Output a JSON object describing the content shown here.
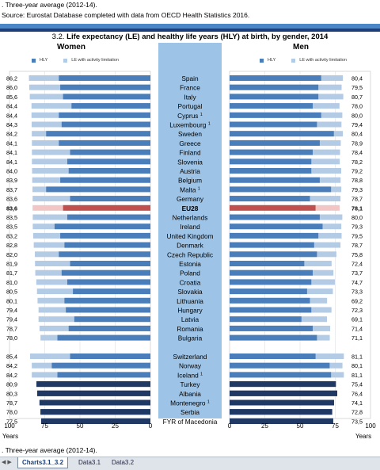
{
  "notes": {
    "top_note": ". Three-year average (2012-14).",
    "source": "Source: Eurostat Database completed with data from OECD Health Statistics 2016.",
    "bottom_note": ". Three-year average (2012-14)."
  },
  "colors": {
    "hly": "#4a7ebb",
    "le": "#b4cbe6",
    "eu_hly": "#c0504d",
    "eu_le": "#f2c6c5",
    "nonmember_hly": "#1f3864",
    "nonmember_le": "#1f3864",
    "middle_band": "#9dc3e6"
  },
  "sheet_tabs": [
    {
      "label": "Charts3.1_3.2",
      "active": true
    },
    {
      "label": "Data3.1",
      "active": false
    },
    {
      "label": "Data3.2",
      "active": false
    }
  ],
  "chart_data": {
    "type": "bar",
    "title_number": "3.2.",
    "title": "Life expectancy (LE) and healthy life years (HLY) at birth, by gender, 2014",
    "women_title": "Women",
    "men_title": "Men",
    "legend": {
      "hly": "HLY",
      "le": "LE with activity limitation"
    },
    "axis_ticks_women": [
      "100",
      "75",
      "50",
      "25",
      "0"
    ],
    "axis_ticks_men": [
      "0",
      "25",
      "50",
      "75",
      "100"
    ],
    "axis_unit": "Years",
    "xlim": [
      0,
      100
    ],
    "countries": [
      {
        "name": "Spain",
        "sup": "",
        "women_le": "86,2",
        "men_le": "80,4",
        "w": 86.2,
        "w_hly": 65,
        "m": 80.4,
        "m_hly": 65,
        "group": "eu"
      },
      {
        "name": "France",
        "sup": "",
        "women_le": "86,0",
        "men_le": "79,5",
        "w": 86.0,
        "w_hly": 64,
        "m": 79.5,
        "m_hly": 63,
        "group": "eu"
      },
      {
        "name": "Italy",
        "sup": "",
        "women_le": "85,6",
        "men_le": "80,7",
        "w": 85.6,
        "w_hly": 62,
        "m": 80.7,
        "m_hly": 63,
        "group": "eu"
      },
      {
        "name": "Portugal",
        "sup": "",
        "women_le": "84,4",
        "men_le": "78,0",
        "w": 84.4,
        "w_hly": 56,
        "m": 78.0,
        "m_hly": 59,
        "group": "eu"
      },
      {
        "name": "Cyprus",
        "sup": "1",
        "women_le": "84,4",
        "men_le": "80,0",
        "w": 84.4,
        "w_hly": 65,
        "m": 80.0,
        "m_hly": 65,
        "group": "eu"
      },
      {
        "name": "Luxembourg",
        "sup": "1",
        "women_le": "84,3",
        "men_le": "79,4",
        "w": 84.3,
        "w_hly": 63,
        "m": 79.4,
        "m_hly": 62,
        "group": "eu"
      },
      {
        "name": "Sweden",
        "sup": "",
        "women_le": "84,2",
        "men_le": "80,4",
        "w": 84.2,
        "w_hly": 74,
        "m": 80.4,
        "m_hly": 74,
        "group": "eu"
      },
      {
        "name": "Greece",
        "sup": "",
        "women_le": "84,1",
        "men_le": "78,9",
        "w": 84.1,
        "w_hly": 65,
        "m": 78.9,
        "m_hly": 64,
        "group": "eu"
      },
      {
        "name": "Finland",
        "sup": "",
        "women_le": "84,1",
        "men_le": "78,4",
        "w": 84.1,
        "w_hly": 57,
        "m": 78.4,
        "m_hly": 59,
        "group": "eu"
      },
      {
        "name": "Slovenia",
        "sup": "",
        "women_le": "84,1",
        "men_le": "78,2",
        "w": 84.1,
        "w_hly": 59,
        "m": 78.2,
        "m_hly": 58,
        "group": "eu"
      },
      {
        "name": "Austria",
        "sup": "",
        "women_le": "84,0",
        "men_le": "79,2",
        "w": 84.0,
        "w_hly": 58,
        "m": 79.2,
        "m_hly": 58,
        "group": "eu"
      },
      {
        "name": "Belgium",
        "sup": "",
        "women_le": "83,9",
        "men_le": "78,8",
        "w": 83.9,
        "w_hly": 64,
        "m": 78.8,
        "m_hly": 64,
        "group": "eu"
      },
      {
        "name": "Malta",
        "sup": "1",
        "women_le": "83,7",
        "men_le": "79,3",
        "w": 83.7,
        "w_hly": 74,
        "m": 79.3,
        "m_hly": 72,
        "group": "eu"
      },
      {
        "name": "Germany",
        "sup": "",
        "women_le": "83,6",
        "men_le": "78,7",
        "w": 83.6,
        "w_hly": 57,
        "m": 78.7,
        "m_hly": 57,
        "group": "eu"
      },
      {
        "name": "EU28",
        "sup": "",
        "women_le": "83,6",
        "men_le": "78,1",
        "w": 83.6,
        "w_hly": 62,
        "m": 78.1,
        "m_hly": 61,
        "group": "eu28"
      },
      {
        "name": "Netherlands",
        "sup": "",
        "women_le": "83,5",
        "men_le": "80,0",
        "w": 83.5,
        "w_hly": 59,
        "m": 80.0,
        "m_hly": 64,
        "group": "eu"
      },
      {
        "name": "Ireland",
        "sup": "",
        "women_le": "83,5",
        "men_le": "79,3",
        "w": 83.5,
        "w_hly": 68,
        "m": 79.3,
        "m_hly": 66,
        "group": "eu"
      },
      {
        "name": "United Kingdom",
        "sup": "",
        "women_le": "83,2",
        "men_le": "79,5",
        "w": 83.2,
        "w_hly": 64,
        "m": 79.5,
        "m_hly": 63,
        "group": "eu"
      },
      {
        "name": "Denmark",
        "sup": "",
        "women_le": "82,8",
        "men_le": "78,7",
        "w": 82.8,
        "w_hly": 61,
        "m": 78.7,
        "m_hly": 60,
        "group": "eu"
      },
      {
        "name": "Czech Republic",
        "sup": "",
        "women_le": "82,0",
        "men_le": "75,8",
        "w": 82.0,
        "w_hly": 65,
        "m": 75.8,
        "m_hly": 62,
        "group": "eu"
      },
      {
        "name": "Estonia",
        "sup": "",
        "women_le": "81,9",
        "men_le": "72,4",
        "w": 81.9,
        "w_hly": 57,
        "m": 72.4,
        "m_hly": 53,
        "group": "eu"
      },
      {
        "name": "Poland",
        "sup": "",
        "women_le": "81,7",
        "men_le": "73,7",
        "w": 81.7,
        "w_hly": 63,
        "m": 73.7,
        "m_hly": 59,
        "group": "eu"
      },
      {
        "name": "Croatia",
        "sup": "",
        "women_le": "81,0",
        "men_le": "74,7",
        "w": 81.0,
        "w_hly": 59,
        "m": 74.7,
        "m_hly": 58,
        "group": "eu"
      },
      {
        "name": "Slovakia",
        "sup": "",
        "women_le": "80,5",
        "men_le": "73,3",
        "w": 80.5,
        "w_hly": 55,
        "m": 73.3,
        "m_hly": 55,
        "group": "eu"
      },
      {
        "name": "Lithuania",
        "sup": "",
        "women_le": "80,1",
        "men_le": "69,2",
        "w": 80.1,
        "w_hly": 61,
        "m": 69.2,
        "m_hly": 57,
        "group": "eu"
      },
      {
        "name": "Hungary",
        "sup": "",
        "women_le": "79,4",
        "men_le": "72,3",
        "w": 79.4,
        "w_hly": 60,
        "m": 72.3,
        "m_hly": 58,
        "group": "eu"
      },
      {
        "name": "Latvia",
        "sup": "",
        "women_le": "79,4",
        "men_le": "69,1",
        "w": 79.4,
        "w_hly": 54,
        "m": 69.1,
        "m_hly": 51,
        "group": "eu"
      },
      {
        "name": "Romania",
        "sup": "",
        "women_le": "78,7",
        "men_le": "71,4",
        "w": 78.7,
        "w_hly": 58,
        "m": 71.4,
        "m_hly": 59,
        "group": "eu"
      },
      {
        "name": "Bulgaria",
        "sup": "",
        "women_le": "78,0",
        "men_le": "71,1",
        "w": 78.0,
        "w_hly": 66,
        "m": 71.1,
        "m_hly": 62,
        "group": "eu"
      },
      {
        "name": "",
        "sup": "",
        "women_le": "",
        "men_le": "",
        "w": null,
        "w_hly": null,
        "m": null,
        "m_hly": null,
        "group": "gap"
      },
      {
        "name": "Switzerland",
        "sup": "",
        "women_le": "85,4",
        "men_le": "81,1",
        "w": 85.4,
        "w_hly": 57,
        "m": 81.1,
        "m_hly": 61,
        "group": "eu"
      },
      {
        "name": "Norway",
        "sup": "",
        "women_le": "84,2",
        "men_le": "80,1",
        "w": 84.2,
        "w_hly": 70,
        "m": 80.1,
        "m_hly": 71,
        "group": "eu"
      },
      {
        "name": "Iceland",
        "sup": "1",
        "women_le": "84,2",
        "men_le": "81,1",
        "w": 84.2,
        "w_hly": 66,
        "m": 81.1,
        "m_hly": 72,
        "group": "eu"
      },
      {
        "name": "Turkey",
        "sup": "",
        "women_le": "80,9",
        "men_le": "75,4",
        "w": 80.9,
        "w_hly": 80.9,
        "m": 75.4,
        "m_hly": 75.4,
        "group": "nonmember"
      },
      {
        "name": "Albania",
        "sup": "",
        "women_le": "80,3",
        "men_le": "76,4",
        "w": 80.3,
        "w_hly": 80.3,
        "m": 76.4,
        "m_hly": 76.4,
        "group": "nonmember"
      },
      {
        "name": "Montenegro",
        "sup": "1",
        "women_le": "78,7",
        "men_le": "74,1",
        "w": 78.7,
        "w_hly": 78.7,
        "m": 74.1,
        "m_hly": 74.1,
        "group": "nonmember"
      },
      {
        "name": "Serbia",
        "sup": "",
        "women_le": "78,0",
        "men_le": "72,8",
        "w": 78.0,
        "w_hly": 78.0,
        "m": 72.8,
        "m_hly": 72.8,
        "group": "nonmember"
      },
      {
        "name": "FYR of Macedonia",
        "sup": "",
        "women_le": "77,5",
        "men_le": "73,5",
        "w": 77.5,
        "w_hly": 77.5,
        "m": 73.5,
        "m_hly": 73.5,
        "group": "nonmember"
      }
    ]
  }
}
